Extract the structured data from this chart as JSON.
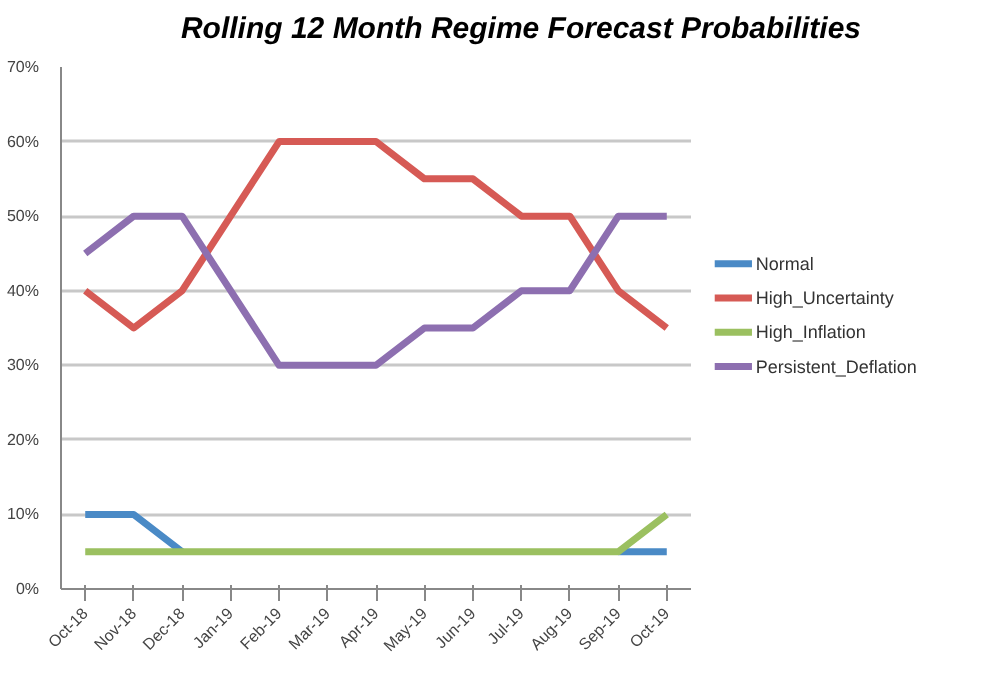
{
  "chart_data": {
    "type": "line",
    "title": "Rolling 12 Month Regime Forecast Probabilities",
    "categories": [
      "Oct-18",
      "Nov-18",
      "Dec-18",
      "Jan-19",
      "Feb-19",
      "Mar-19",
      "Apr-19",
      "May-19",
      "Jun-19",
      "Jul-19",
      "Aug-19",
      "Sep-19",
      "Oct-19"
    ],
    "series": [
      {
        "name": "Normal",
        "color": "#4a8ac6",
        "values": [
          10,
          10,
          5,
          null,
          null,
          null,
          null,
          null,
          null,
          null,
          null,
          5,
          5
        ]
      },
      {
        "name": "High_Uncertainty",
        "color": "#d65a55",
        "values": [
          40,
          35,
          40,
          50,
          60,
          60,
          60,
          55,
          55,
          50,
          50,
          40,
          35
        ]
      },
      {
        "name": "High_Inflation",
        "color": "#9bc060",
        "values": [
          5,
          5,
          5,
          5,
          5,
          5,
          5,
          5,
          5,
          5,
          5,
          5,
          10
        ]
      },
      {
        "name": "Persistent_Deflation",
        "color": "#8d6fb0",
        "values": [
          45,
          50,
          50,
          40,
          30,
          30,
          30,
          35,
          35,
          40,
          40,
          50,
          50
        ]
      }
    ],
    "ylim": [
      0,
      70
    ],
    "yticks": [
      {
        "value": 0,
        "label": "0%"
      },
      {
        "value": 10,
        "label": "10%"
      },
      {
        "value": 20,
        "label": "20%"
      },
      {
        "value": 30,
        "label": "30%"
      },
      {
        "value": 40,
        "label": "40%"
      },
      {
        "value": 50,
        "label": "50%"
      },
      {
        "value": 60,
        "label": "60%"
      },
      {
        "value": 70,
        "label": "70%"
      }
    ],
    "grid": "y",
    "legend": "right",
    "marker": "none",
    "line_style": "solid"
  }
}
